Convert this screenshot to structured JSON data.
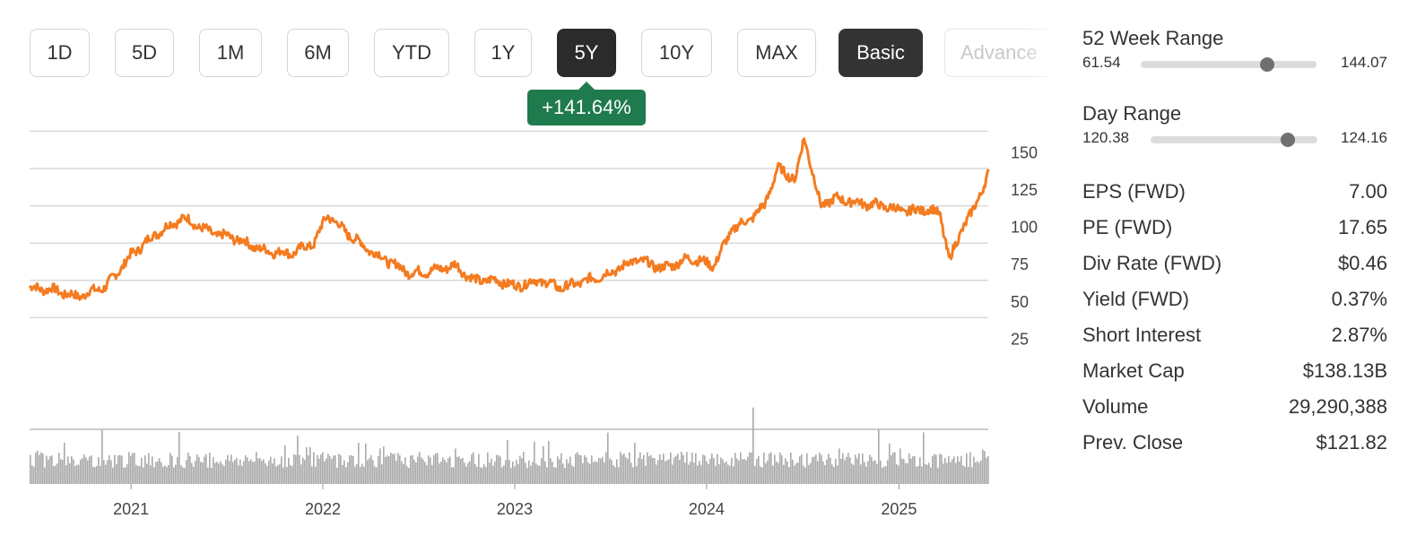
{
  "range_buttons": [
    {
      "label": "1D",
      "state": "normal"
    },
    {
      "label": "5D",
      "state": "normal"
    },
    {
      "label": "1M",
      "state": "normal"
    },
    {
      "label": "6M",
      "state": "normal"
    },
    {
      "label": "YTD",
      "state": "normal"
    },
    {
      "label": "1Y",
      "state": "normal"
    },
    {
      "label": "5Y",
      "state": "active"
    },
    {
      "label": "10Y",
      "state": "normal"
    },
    {
      "label": "MAX",
      "state": "normal"
    }
  ],
  "mode_buttons": [
    {
      "label": "Basic",
      "state": "active"
    },
    {
      "label": "Advance",
      "state": "disabled"
    }
  ],
  "change_badge": "+141.64%",
  "colors": {
    "line": "#f47b20",
    "volume": "#a9a9a9",
    "grid": "#d9d9d9",
    "badge": "#1f7a4d"
  },
  "chart_data": {
    "type": "line",
    "x_ticks": [
      "2021",
      "2022",
      "2023",
      "2024",
      "2025"
    ],
    "y_ticks": [
      "150",
      "125",
      "100",
      "75",
      "50",
      "25"
    ],
    "ylim": [
      0,
      150
    ],
    "grid": true,
    "price_series": {
      "x": [
        "2020-06-22",
        "2020-08-01",
        "2020-09-20",
        "2020-11-15",
        "2021-01-01",
        "2021-02-20",
        "2021-04-10",
        "2021-06-01",
        "2021-07-20",
        "2021-09-10",
        "2021-11-01",
        "2021-12-15",
        "2022-01-10",
        "2022-02-15",
        "2022-04-01",
        "2022-05-10",
        "2022-06-15",
        "2022-07-20",
        "2022-09-10",
        "2022-10-15",
        "2022-12-01",
        "2023-01-01",
        "2023-02-15",
        "2023-04-01",
        "2023-05-20",
        "2023-07-01",
        "2023-08-20",
        "2023-10-10",
        "2023-12-01",
        "2024-01-15",
        "2024-02-20",
        "2024-03-20",
        "2024-04-20",
        "2024-05-15",
        "2024-06-18",
        "2024-07-05",
        "2024-08-05",
        "2024-09-01",
        "2024-10-15",
        "2024-12-01",
        "2025-01-15",
        "2025-02-20",
        "2025-03-20",
        "2025-04-07",
        "2025-05-01",
        "2025-05-20",
        "2025-06-20"
      ],
      "y": [
        45,
        44,
        39,
        46,
        67,
        82,
        92,
        82,
        78,
        70,
        68,
        75,
        94,
        82,
        70,
        62,
        55,
        56,
        60,
        50,
        50,
        46,
        50,
        45,
        50,
        55,
        64,
        58,
        65,
        60,
        85,
        90,
        100,
        125,
        118,
        146,
        100,
        105,
        102,
        100,
        96,
        98,
        95,
        63,
        85,
        95,
        121
      ]
    },
    "volume": {
      "x": [
        "2020-06",
        "2020-09",
        "2020-12",
        "2021-03",
        "2021-06",
        "2021-09",
        "2021-12",
        "2022-03",
        "2022-06",
        "2022-09",
        "2022-12",
        "2023-03",
        "2023-06",
        "2023-09",
        "2023-12",
        "2024-03",
        "2024-04",
        "2024-06",
        "2024-09",
        "2024-10",
        "2024-12",
        "2025-03",
        "2025-04",
        "2025-06"
      ],
      "y": [
        22,
        24,
        26,
        30,
        28,
        26,
        30,
        32,
        27,
        24,
        22,
        25,
        22,
        24,
        26,
        30,
        65,
        38,
        30,
        75,
        45,
        40,
        52,
        28
      ]
    }
  },
  "week52_range": {
    "title": "52 Week Range",
    "low": "61.54",
    "high": "144.07",
    "position": 0.72
  },
  "day_range": {
    "title": "Day Range",
    "low": "120.38",
    "high": "124.16",
    "position": 0.82
  },
  "stats": [
    {
      "label": "EPS (FWD)",
      "value": "7.00"
    },
    {
      "label": "PE (FWD)",
      "value": "17.65"
    },
    {
      "label": "Div Rate (FWD)",
      "value": "$0.46"
    },
    {
      "label": "Yield (FWD)",
      "value": "0.37%"
    },
    {
      "label": "Short Interest",
      "value": "2.87%"
    },
    {
      "label": "Market Cap",
      "value": "$138.13B"
    },
    {
      "label": "Volume",
      "value": "29,290,388"
    },
    {
      "label": "Prev. Close",
      "value": "$121.82"
    }
  ]
}
